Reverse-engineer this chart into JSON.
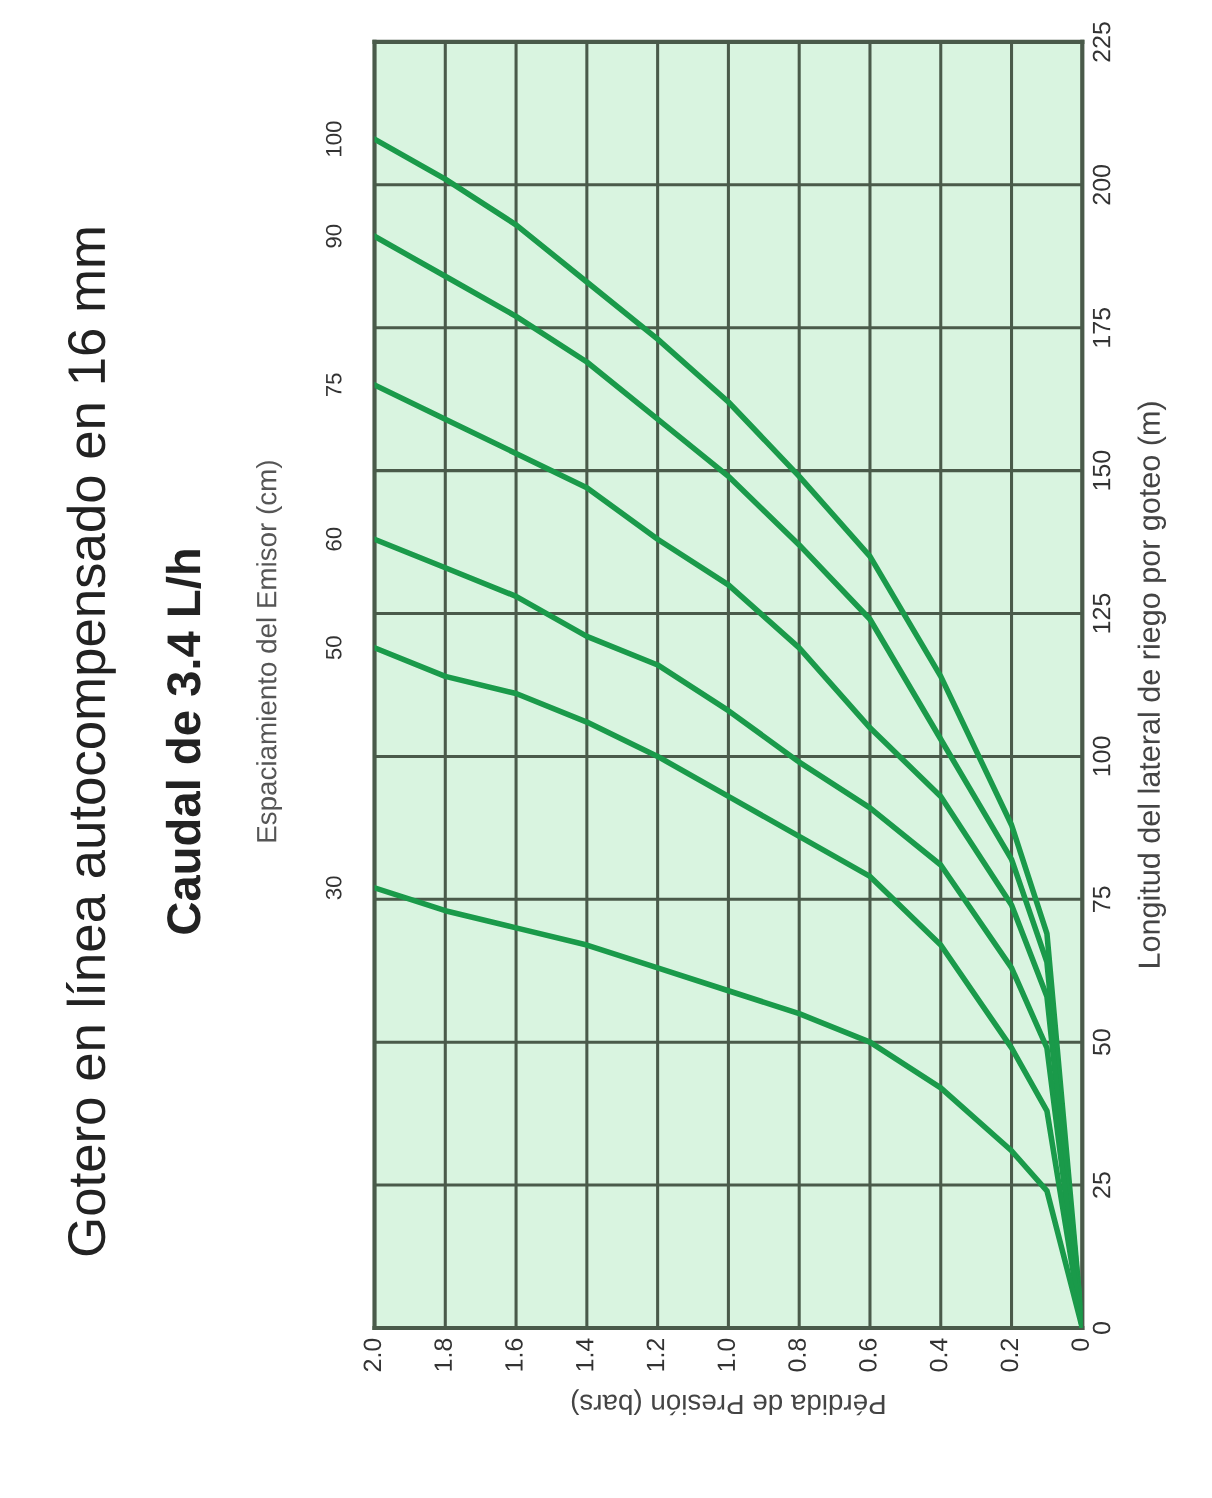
{
  "chart_data": {
    "type": "line",
    "title": "Gotero en línea autocompensado en 16 mm",
    "subtitle": "Caudal de 3.4 L/h",
    "legend_title": "Espaciamiento del Emisor (cm)",
    "xlabel": "Pérdida de Presión (bars)",
    "ylabel": "Longitud del lateral de riego por goteo (m)",
    "xlim": [
      2.0,
      0
    ],
    "xticks": [
      {
        "value": 2,
        "label": "2.0"
      },
      1.8,
      1.6,
      1.4,
      1.2,
      {
        "value": 1,
        "label": "1.0"
      },
      0.8,
      0.6,
      0.4,
      0.2,
      0
    ],
    "ylim": [
      0,
      225
    ],
    "yticks": [
      0,
      25,
      50,
      75,
      100,
      125,
      150,
      175,
      200,
      225
    ],
    "grid": true,
    "legend": "left",
    "marker": "none",
    "line_style": "solid",
    "series": [
      {
        "name": "100",
        "color": "#1a9a4a",
        "x": [
          2.0,
          1.8,
          1.6,
          1.4,
          1.2,
          1.0,
          0.8,
          0.6,
          0.4,
          0.2,
          0.1,
          0
        ],
        "values": [
          208,
          201,
          193,
          183,
          173,
          162,
          149,
          135,
          114,
          88,
          69,
          0
        ]
      },
      {
        "name": "90",
        "color": "#1a9a4a",
        "x": [
          2.0,
          1.8,
          1.6,
          1.4,
          1.2,
          1.0,
          0.8,
          0.6,
          0.4,
          0.2,
          0.1,
          0
        ],
        "values": [
          191,
          184,
          177,
          169,
          159,
          149,
          137,
          124,
          103,
          82,
          64,
          0
        ]
      },
      {
        "name": "75",
        "color": "#1a9a4a",
        "x": [
          2.0,
          1.8,
          1.6,
          1.4,
          1.2,
          1.0,
          0.8,
          0.6,
          0.4,
          0.2,
          0.1,
          0
        ],
        "values": [
          165,
          159,
          153,
          147,
          138,
          130,
          119,
          105,
          93,
          74,
          58,
          0
        ]
      },
      {
        "name": "60",
        "color": "#1a9a4a",
        "x": [
          2.0,
          1.8,
          1.6,
          1.4,
          1.2,
          1.0,
          0.8,
          0.6,
          0.4,
          0.2,
          0.1,
          0
        ],
        "values": [
          138,
          133,
          128,
          121,
          116,
          108,
          99,
          91,
          81,
          63,
          49,
          0
        ]
      },
      {
        "name": "50",
        "color": "#1a9a4a",
        "x": [
          2.0,
          1.8,
          1.6,
          1.4,
          1.2,
          1.0,
          0.8,
          0.6,
          0.4,
          0.2,
          0.1,
          0
        ],
        "values": [
          119,
          114,
          111,
          106,
          100,
          93,
          86,
          79,
          67,
          49,
          38,
          0
        ]
      },
      {
        "name": "30",
        "color": "#1a9a4a",
        "x": [
          2.0,
          1.8,
          1.6,
          1.4,
          1.2,
          1.0,
          0.8,
          0.6,
          0.4,
          0.2,
          0.1,
          0
        ],
        "values": [
          77,
          73,
          70,
          67,
          63,
          59,
          55,
          50,
          42,
          31,
          24,
          0
        ]
      }
    ]
  }
}
